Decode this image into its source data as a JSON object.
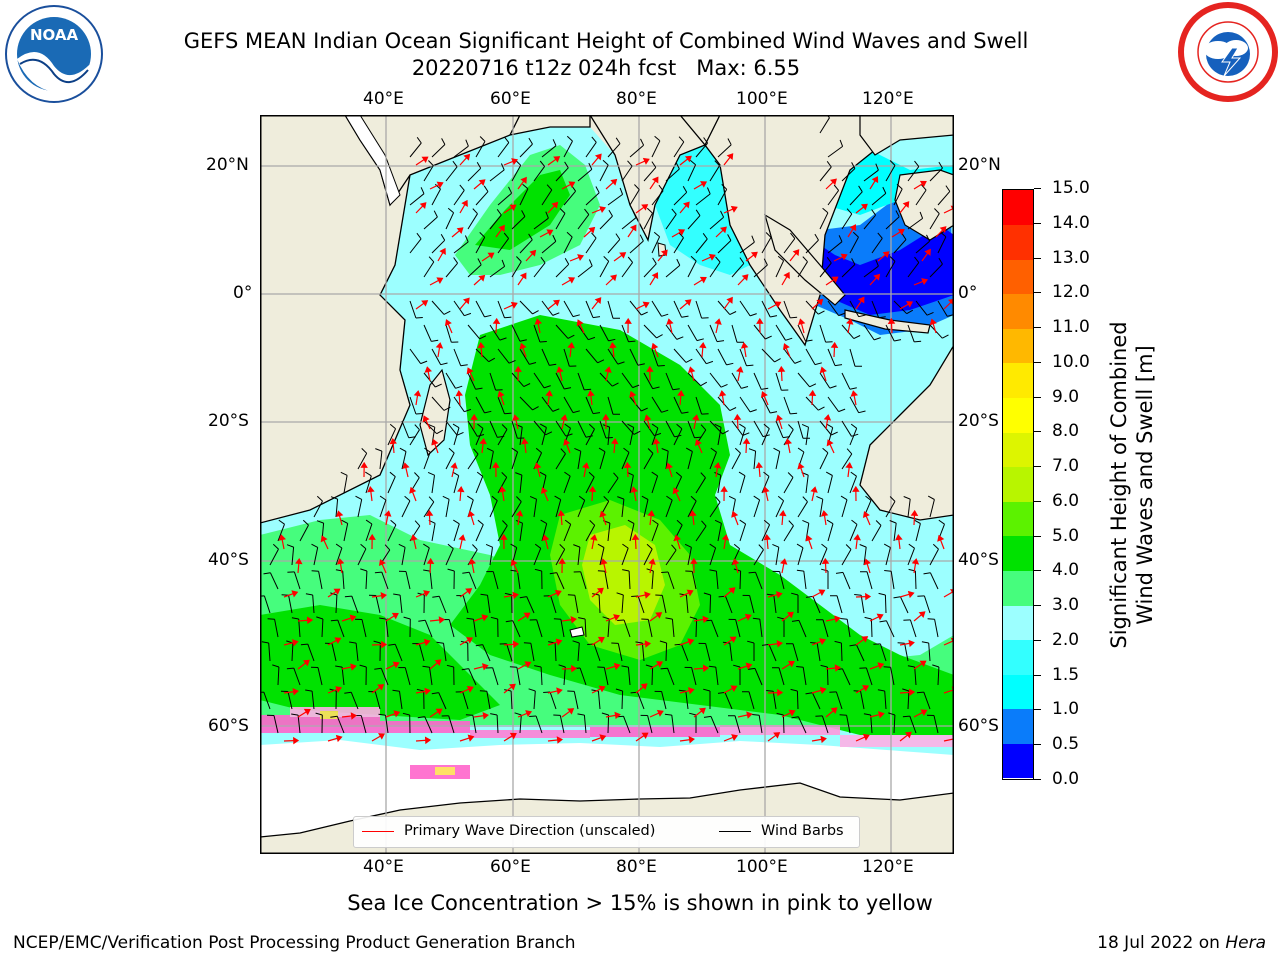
{
  "header": {
    "title_line1": "GEFS MEAN Indian Ocean Significant Height of Combined Wind Waves and Swell",
    "title_line2": "20220716 t12z 024h fcst   Max: 6.55"
  },
  "logos": {
    "left": {
      "name": "noaa-logo",
      "text": "NOAA",
      "color": "#1a6ab5"
    },
    "right": {
      "name": "nws-logo",
      "color": "#e52420"
    }
  },
  "map": {
    "lon_ticks": [
      "40°E",
      "60°E",
      "80°E",
      "100°E",
      "120°E"
    ],
    "lat_ticks": [
      "20°N",
      "0°",
      "20°S",
      "40°S",
      "60°S"
    ],
    "land_color": "#efeddc",
    "ice_color": "#ffffff"
  },
  "legend": {
    "wave_label": "Primary Wave Direction (unscaled)",
    "wave_color": "#ff0000",
    "wind_label": "Wind Barbs",
    "wind_color": "#000000"
  },
  "colorbar": {
    "title_line1": "Significant Height of Combined",
    "title_line2": "Wind Waves and Swell [m]",
    "levels": [
      "0.0",
      "0.5",
      "1.0",
      "1.5",
      "2.0",
      "3.0",
      "4.0",
      "5.0",
      "6.0",
      "7.0",
      "8.0",
      "9.0",
      "10.0",
      "11.0",
      "12.0",
      "13.0",
      "14.0",
      "15.0"
    ],
    "colors": [
      "#0000ff",
      "#0a7cfa",
      "#00ffff",
      "#33ffff",
      "#9cffff",
      "#46fd7d",
      "#00e200",
      "#5cf200",
      "#b8f500",
      "#ddf500",
      "#ffff00",
      "#ffea00",
      "#ffb800",
      "#ff8a00",
      "#ff6000",
      "#ff3000",
      "#ff0000"
    ]
  },
  "footer": {
    "note": "Sea Ice Concentration > 15% is shown in pink to yellow",
    "org": "NCEP/EMC/Verification Post Processing Product Generation Branch",
    "date": "18 Jul 2022 on",
    "host": "Hera"
  }
}
